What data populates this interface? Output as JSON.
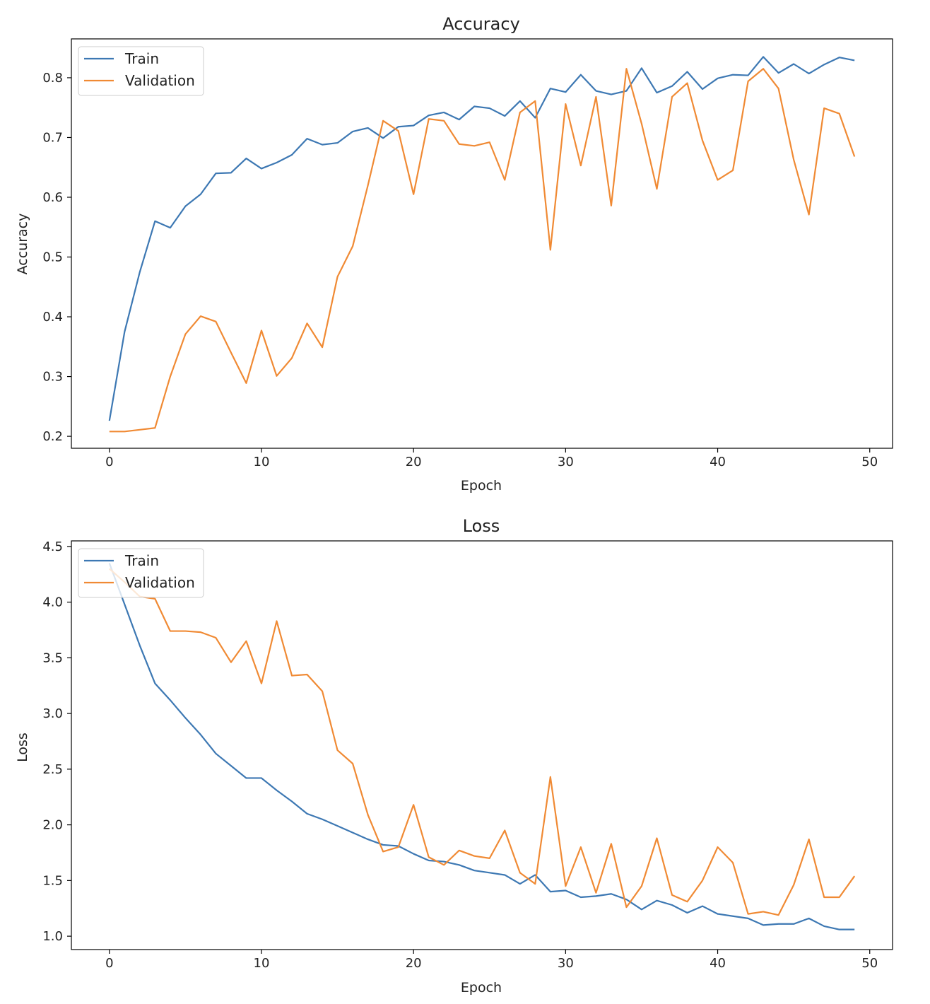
{
  "colors": {
    "train": "#3d78b3",
    "validation": "#f08a34"
  },
  "chart_data": [
    {
      "type": "line",
      "title": "Accuracy",
      "xlabel": "Epoch",
      "ylabel": "Accuracy",
      "xlim": [
        -2.5,
        51.5
      ],
      "ylim": [
        0.18,
        0.865
      ],
      "xticks": [
        0,
        10,
        20,
        30,
        40,
        50
      ],
      "yticks": [
        0.2,
        0.3,
        0.4,
        0.5,
        0.6,
        0.7,
        0.8
      ],
      "xtick_labels": [
        "0",
        "10",
        "20",
        "30",
        "40",
        "50"
      ],
      "ytick_labels": [
        "0.2",
        "0.3",
        "0.4",
        "0.5",
        "0.6",
        "0.7",
        "0.8"
      ],
      "legend_position": "top-left",
      "grid": false,
      "x": [
        0,
        1,
        2,
        3,
        4,
        5,
        6,
        7,
        8,
        9,
        10,
        11,
        12,
        13,
        14,
        15,
        16,
        17,
        18,
        19,
        20,
        21,
        22,
        23,
        24,
        25,
        26,
        27,
        28,
        29,
        30,
        31,
        32,
        33,
        34,
        35,
        36,
        37,
        38,
        39,
        40,
        41,
        42,
        43,
        44,
        45,
        46,
        47,
        48,
        49
      ],
      "series": [
        {
          "name": "Train",
          "color_key": "train",
          "values": [
            0.226,
            0.375,
            0.475,
            0.56,
            0.549,
            0.585,
            0.605,
            0.64,
            0.641,
            0.665,
            0.648,
            0.658,
            0.671,
            0.698,
            0.688,
            0.691,
            0.71,
            0.716,
            0.699,
            0.718,
            0.72,
            0.737,
            0.742,
            0.73,
            0.752,
            0.749,
            0.736,
            0.761,
            0.733,
            0.782,
            0.776,
            0.805,
            0.778,
            0.772,
            0.778,
            0.816,
            0.775,
            0.786,
            0.81,
            0.781,
            0.799,
            0.805,
            0.804,
            0.835,
            0.808,
            0.823,
            0.807,
            0.822,
            0.834,
            0.829
          ]
        },
        {
          "name": "Validation",
          "color_key": "validation",
          "values": [
            0.208,
            0.208,
            0.211,
            0.214,
            0.3,
            0.371,
            0.401,
            0.392,
            0.34,
            0.289,
            0.377,
            0.301,
            0.331,
            0.389,
            0.349,
            0.467,
            0.518,
            0.62,
            0.728,
            0.711,
            0.605,
            0.731,
            0.728,
            0.689,
            0.686,
            0.692,
            0.629,
            0.742,
            0.761,
            0.512,
            0.756,
            0.653,
            0.768,
            0.586,
            0.815,
            0.723,
            0.614,
            0.768,
            0.791,
            0.695,
            0.629,
            0.645,
            0.794,
            0.815,
            0.782,
            0.663,
            0.571,
            0.749,
            0.74,
            0.668
          ]
        }
      ]
    },
    {
      "type": "line",
      "title": "Loss",
      "xlabel": "Epoch",
      "ylabel": "Loss",
      "xlim": [
        -2.5,
        51.5
      ],
      "ylim": [
        0.88,
        4.55
      ],
      "xticks": [
        0,
        10,
        20,
        30,
        40,
        50
      ],
      "yticks": [
        1.0,
        1.5,
        2.0,
        2.5,
        3.0,
        3.5,
        4.0,
        4.5
      ],
      "xtick_labels": [
        "0",
        "10",
        "20",
        "30",
        "40",
        "50"
      ],
      "ytick_labels": [
        "1.0",
        "1.5",
        "2.0",
        "2.5",
        "3.0",
        "3.5",
        "4.0",
        "4.5"
      ],
      "legend_position": "top-left",
      "grid": false,
      "x": [
        0,
        1,
        2,
        3,
        4,
        5,
        6,
        7,
        8,
        9,
        10,
        11,
        12,
        13,
        14,
        15,
        16,
        17,
        18,
        19,
        20,
        21,
        22,
        23,
        24,
        25,
        26,
        27,
        28,
        29,
        30,
        31,
        32,
        33,
        34,
        35,
        36,
        37,
        38,
        39,
        40,
        41,
        42,
        43,
        44,
        45,
        46,
        47,
        48,
        49
      ],
      "series": [
        {
          "name": "Train",
          "color_key": "train",
          "values": [
            4.35,
            3.98,
            3.61,
            3.27,
            3.12,
            2.96,
            2.81,
            2.64,
            2.53,
            2.42,
            2.42,
            2.31,
            2.21,
            2.1,
            2.05,
            1.99,
            1.93,
            1.87,
            1.82,
            1.81,
            1.74,
            1.68,
            1.67,
            1.64,
            1.59,
            1.57,
            1.55,
            1.47,
            1.55,
            1.4,
            1.41,
            1.35,
            1.36,
            1.38,
            1.33,
            1.24,
            1.32,
            1.28,
            1.21,
            1.27,
            1.2,
            1.18,
            1.16,
            1.1,
            1.11,
            1.11,
            1.16,
            1.09,
            1.06,
            1.06
          ]
        },
        {
          "name": "Validation",
          "color_key": "validation",
          "values": [
            4.3,
            4.18,
            4.05,
            4.03,
            3.74,
            3.74,
            3.73,
            3.68,
            3.46,
            3.65,
            3.27,
            3.83,
            3.34,
            3.35,
            3.2,
            2.67,
            2.55,
            2.09,
            1.76,
            1.8,
            2.18,
            1.71,
            1.64,
            1.77,
            1.72,
            1.7,
            1.95,
            1.57,
            1.47,
            2.43,
            1.45,
            1.8,
            1.39,
            1.83,
            1.26,
            1.45,
            1.88,
            1.37,
            1.31,
            1.5,
            1.8,
            1.66,
            1.2,
            1.22,
            1.19,
            1.46,
            1.87,
            1.35,
            1.35,
            1.54
          ]
        }
      ]
    }
  ]
}
